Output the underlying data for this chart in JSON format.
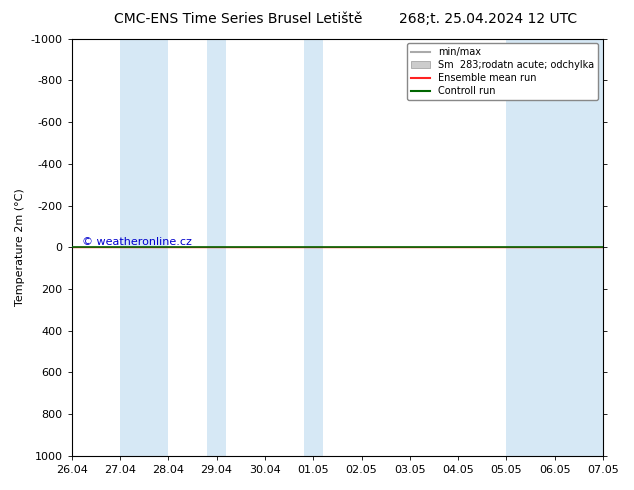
{
  "title_left": "CMC-ENS Time Series Brusel Letiště",
  "title_right": "268;t. 25.04.2024 12 UTC",
  "ylabel": "Temperature 2m (°C)",
  "watermark": "© weatheronline.cz",
  "xtick_labels": [
    "26.04",
    "27.04",
    "28.04",
    "29.04",
    "30.04",
    "01.05",
    "02.05",
    "03.05",
    "04.05",
    "05.05",
    "06.05",
    "07.05"
  ],
  "ytick_labels": [
    "-1000",
    "-800",
    "-600",
    "-400",
    "-200",
    "0",
    "200",
    "400",
    "600",
    "800",
    "1000"
  ],
  "ylim_top": -1000,
  "ylim_bottom": 1000,
  "xlim": [
    0,
    11
  ],
  "shaded_bands": [
    [
      1,
      2
    ],
    [
      2.8,
      3.2
    ],
    [
      4.8,
      5.2
    ],
    [
      9.0,
      11.0
    ]
  ],
  "shaded_color": "#d6e8f5",
  "ensemble_mean_color": "#ff2222",
  "control_run_color": "#006600",
  "minmax_color": "#aaaaaa",
  "sm_color": "#cccccc",
  "background_color": "#ffffff",
  "legend_entries": [
    "min/max",
    "Sm  283;rodatn acute; odchylka",
    "Ensemble mean run",
    "Controll run"
  ],
  "control_run_y": 0,
  "ensemble_mean_y": 0,
  "title_fontsize": 10,
  "axis_fontsize": 8,
  "tick_fontsize": 8,
  "watermark_color": "#0000cc"
}
